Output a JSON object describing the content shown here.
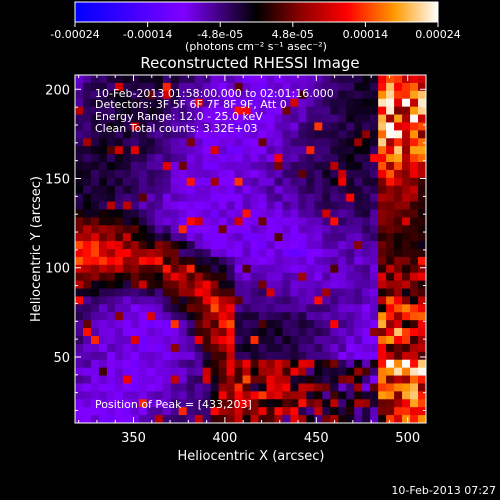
{
  "colorbar": {
    "ticks": [
      "-0.00024",
      "-0.00014",
      "-4.8e-05",
      "4.8e-05",
      "0.00014",
      "0.00024"
    ],
    "units": "(photons cm⁻² s⁻¹ asec⁻²)",
    "colors": [
      "#0000ff",
      "#7f00ff",
      "#000000",
      "#7f0000",
      "#ff0000",
      "#ff9900",
      "#ffffff"
    ]
  },
  "chart_data": {
    "type": "heatmap",
    "title": "Reconstructed RHESSI Image",
    "xlabel": "Heliocentric X (arcsec)",
    "ylabel": "Heliocentric Y (arcsec)",
    "xlim": [
      318,
      510
    ],
    "ylim": [
      13,
      208
    ],
    "xticks": [
      350,
      400,
      450,
      500
    ],
    "yticks": [
      50,
      100,
      150,
      200
    ],
    "annotations": {
      "time_range": "10-Feb-2013 01:58:00.000 to 02:01:16.000",
      "detectors": "Detectors: 3F 5F 6F 7F 8F 9F, Att 0",
      "energy": "Energy Range: 12.0 - 25.0 keV",
      "clean": "Clean     Total counts: 3.32E+03",
      "peak": "Position of Peak = [433,203]"
    }
  },
  "footer": {
    "timestamp": "10-Feb-2013 07:27"
  }
}
